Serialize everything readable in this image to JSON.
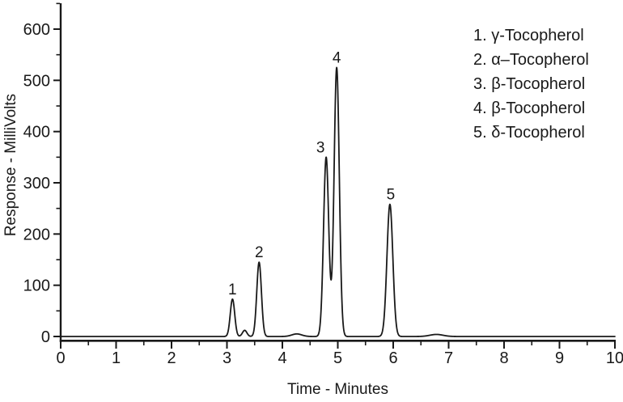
{
  "figure": {
    "background": "#ffffff",
    "line_color": "#191919",
    "text_color": "#191919"
  },
  "chart_data": {
    "type": "line",
    "subtype": "chromatogram",
    "title": "",
    "xlabel": "Time - Minutes",
    "ylabel": "Response - MilliVolts",
    "xlim": [
      0,
      10
    ],
    "ylim": [
      0,
      650
    ],
    "x_ticks": [
      0,
      1,
      2,
      3,
      4,
      5,
      6,
      7,
      8,
      9,
      10
    ],
    "x_minor_step": 0.5,
    "y_ticks": [
      0,
      100,
      200,
      300,
      400,
      500,
      600
    ],
    "y_minor_step": 50,
    "grid": false,
    "legend_position": "top-right",
    "legend": [
      "1. γ-Tocopherol",
      "2. α–Tocopherol",
      "3. β-Tocopherol",
      "4. β-Tocopherol",
      "5. δ-Tocopherol"
    ],
    "baseline_mV": 0,
    "peaks": [
      {
        "label": "1",
        "name": "γ-Tocopherol",
        "time_min": 3.1,
        "height_mV": 73,
        "sigma_min": 0.04,
        "label_dx": 0
      },
      {
        "label": "2",
        "name": "α–Tocopherol",
        "time_min": 3.58,
        "height_mV": 145,
        "sigma_min": 0.042,
        "label_dx": 0
      },
      {
        "label": "3",
        "name": "β-Tocopherol",
        "time_min": 4.79,
        "height_mV": 350,
        "sigma_min": 0.047,
        "label_dx": -7
      },
      {
        "label": "4",
        "name": "β-Tocopherol",
        "time_min": 4.98,
        "height_mV": 525,
        "sigma_min": 0.047,
        "label_dx": 0
      },
      {
        "label": "5",
        "name": "δ-Tocopherol",
        "time_min": 5.94,
        "height_mV": 258,
        "sigma_min": 0.053,
        "label_dx": 1
      }
    ],
    "minor_features": [
      {
        "time_min": 3.32,
        "height_mV": 12,
        "sigma_min": 0.04
      },
      {
        "time_min": 4.26,
        "height_mV": 5,
        "sigma_min": 0.09
      },
      {
        "time_min": 6.78,
        "height_mV": 4,
        "sigma_min": 0.12
      }
    ]
  }
}
